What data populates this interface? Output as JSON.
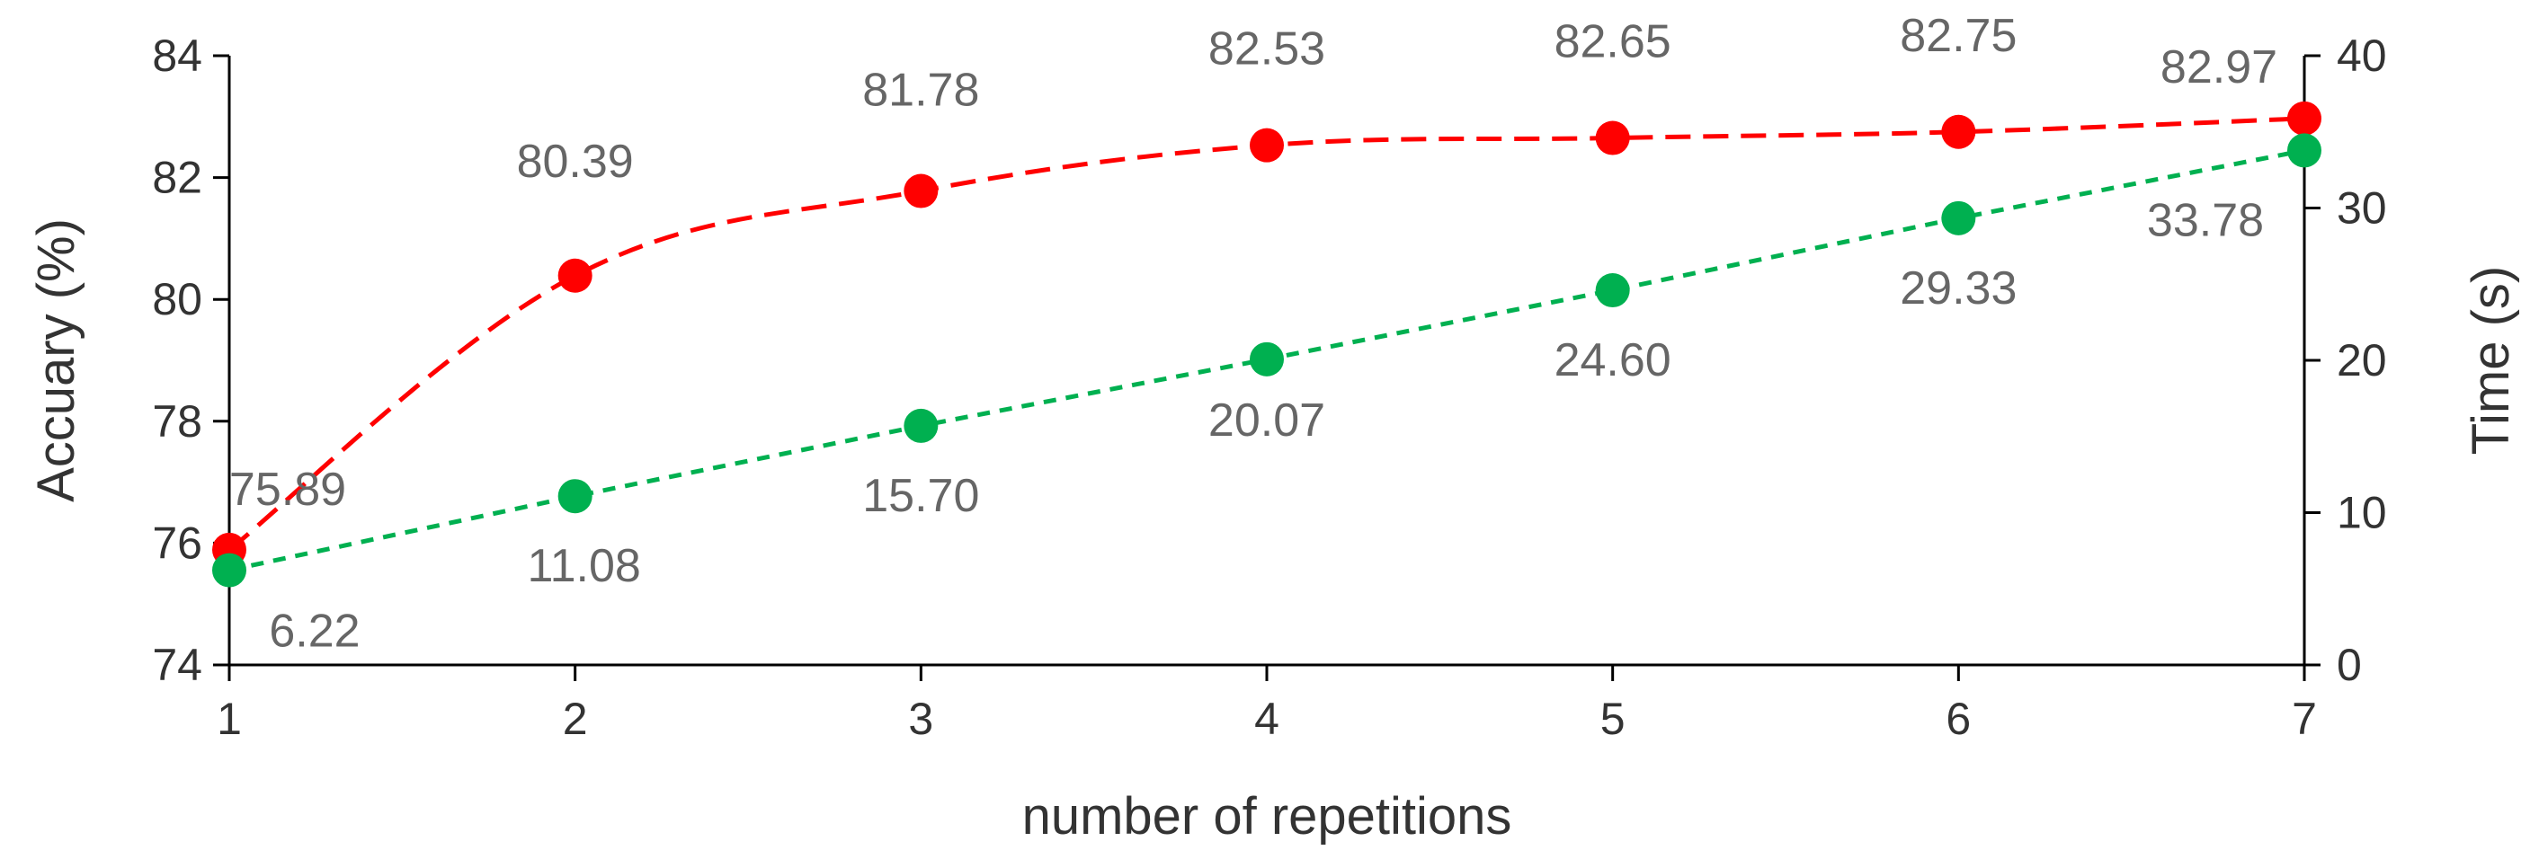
{
  "chart_data": {
    "type": "line",
    "x": [
      1,
      2,
      3,
      4,
      5,
      6,
      7
    ],
    "xlabel": "number of repetitions",
    "y_left_label": "Accuary (%)",
    "y_right_label": "Time (s)",
    "y_left_lim": [
      74,
      84
    ],
    "y_left_ticks": [
      74,
      76,
      78,
      80,
      82,
      84
    ],
    "y_right_lim": [
      0,
      40
    ],
    "y_right_ticks": [
      0,
      10,
      20,
      30,
      40
    ],
    "x_ticks": [
      1,
      2,
      3,
      4,
      5,
      6,
      7
    ],
    "grid": false,
    "series": [
      {
        "axis": "left",
        "color": "#ff0000",
        "line_style": "long-dash",
        "smooth": true,
        "values": [
          75.89,
          80.39,
          81.78,
          82.53,
          82.65,
          82.75,
          82.97
        ],
        "labels": [
          "75.89",
          "80.39",
          "81.78",
          "82.53",
          "82.65",
          "82.75",
          "82.97"
        ]
      },
      {
        "axis": "right",
        "color": "#00b050",
        "line_style": "short-dash",
        "smooth": false,
        "values": [
          6.22,
          11.08,
          15.7,
          20.07,
          24.6,
          29.33,
          33.78
        ],
        "labels": [
          "6.22",
          "11.08",
          "15.70",
          "20.07",
          "24.60",
          "29.33",
          "33.78"
        ]
      }
    ]
  }
}
